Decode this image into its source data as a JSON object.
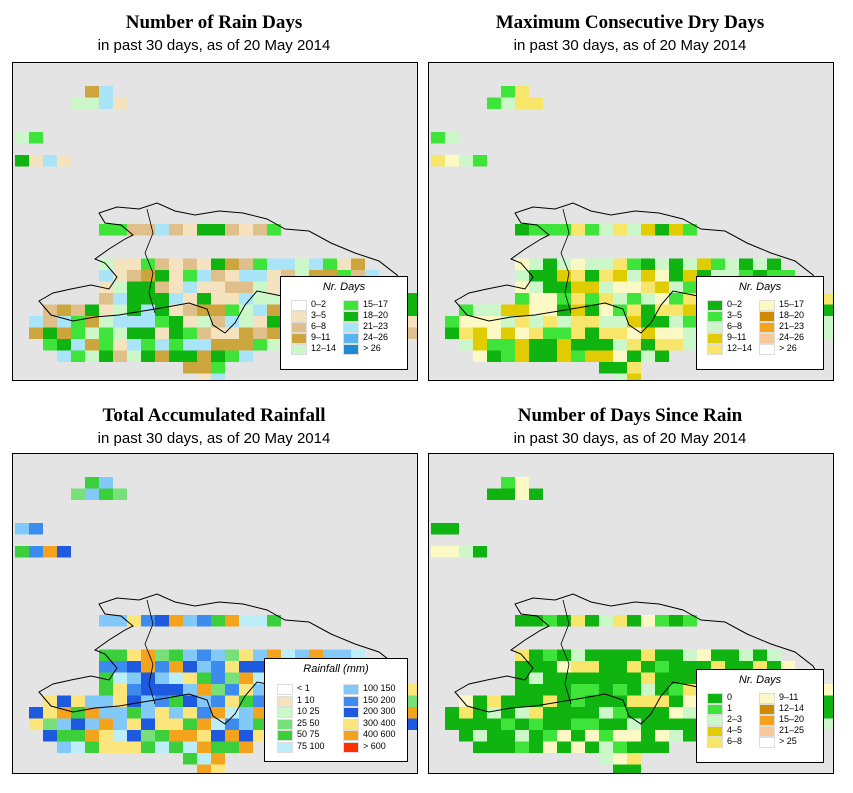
{
  "panels": [
    {
      "id": "rain-days",
      "title": "Number of Rain Days",
      "subtitle": "in past 30 days, as of  20 May 2014",
      "legend": {
        "title": "Nr. Days",
        "items": [
          {
            "label": "0–2",
            "color": "#ffffff"
          },
          {
            "label": "3–5",
            "color": "#f5e3c0"
          },
          {
            "label": "6–8",
            "color": "#dfc08a"
          },
          {
            "label": "9–11",
            "color": "#cca63c"
          },
          {
            "label": "12–14",
            "color": "#ccf7c8"
          },
          {
            "label": "15–17",
            "color": "#3ee43a"
          },
          {
            "label": "18–20",
            "color": "#10b410"
          },
          {
            "label": "21–23",
            "color": "#aae4f8"
          },
          {
            "label": "24–26",
            "color": "#56b4ee"
          },
          {
            "label": "> 26",
            "color": "#1e8cd0"
          }
        ]
      }
    },
    {
      "id": "dry-days",
      "title": "Maximum Consecutive Dry Days",
      "subtitle": "in past 30 days, as of  20 May 2014",
      "legend": {
        "title": "Nr. Days",
        "items": [
          {
            "label": "0–2",
            "color": "#10b410"
          },
          {
            "label": "3–5",
            "color": "#3ee43a"
          },
          {
            "label": "6–8",
            "color": "#ccf7c8"
          },
          {
            "label": "9–11",
            "color": "#e0cc00"
          },
          {
            "label": "12–14",
            "color": "#f8e66a"
          },
          {
            "label": "15–17",
            "color": "#fdf9c4"
          },
          {
            "label": "18–20",
            "color": "#d08a00"
          },
          {
            "label": "21–23",
            "color": "#f4a41c"
          },
          {
            "label": "24–26",
            "color": "#f8c896"
          },
          {
            "label": "> 26",
            "color": "#ffffff"
          }
        ]
      }
    },
    {
      "id": "rainfall",
      "title": "Total Accumulated Rainfall",
      "subtitle": "in past 30 days, as of  20 May 2014",
      "legend": {
        "title": "Rainfall (mm)",
        "items": [
          {
            "label": "< 1",
            "color": "#ffffff"
          },
          {
            "label": "1   10",
            "color": "#f5e3c0"
          },
          {
            "label": "10   25",
            "color": "#ccf7c8"
          },
          {
            "label": "25   50",
            "color": "#78e078"
          },
          {
            "label": "50   75",
            "color": "#3ccf3c"
          },
          {
            "label": "75   100",
            "color": "#bceefa"
          },
          {
            "label": "100   150",
            "color": "#82c8f8"
          },
          {
            "label": "150   200",
            "color": "#3c8cf0"
          },
          {
            "label": "200   300",
            "color": "#1e5ae0"
          },
          {
            "label": "300   400",
            "color": "#fce67c"
          },
          {
            "label": "400   600",
            "color": "#f4a41c"
          },
          {
            "label": "> 600",
            "color": "#ff3000"
          }
        ]
      }
    },
    {
      "id": "since-rain",
      "title": "Number of Days Since Rain",
      "subtitle": "in past 30 days, as of  20 May 2014",
      "legend": {
        "title": "Nr. Days",
        "items": [
          {
            "label": "0",
            "color": "#10b410"
          },
          {
            "label": "1",
            "color": "#3ee43a"
          },
          {
            "label": "2–3",
            "color": "#ccf7c8"
          },
          {
            "label": "4–5",
            "color": "#e0cc00"
          },
          {
            "label": "6–8",
            "color": "#f8e66a"
          },
          {
            "label": "9–11",
            "color": "#fdf9c4"
          },
          {
            "label": "12–14",
            "color": "#d08a00"
          },
          {
            "label": "15–20",
            "color": "#f4a41c"
          },
          {
            "label": "21–25",
            "color": "#f8c896"
          },
          {
            "label": "> 25",
            "color": "#ffffff"
          }
        ]
      }
    }
  ]
}
